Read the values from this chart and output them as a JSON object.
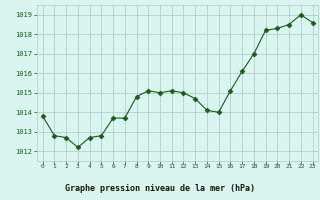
{
  "x": [
    0,
    1,
    2,
    3,
    4,
    5,
    6,
    7,
    8,
    9,
    10,
    11,
    12,
    13,
    14,
    15,
    16,
    17,
    18,
    19,
    20,
    21,
    22,
    23
  ],
  "y": [
    1013.8,
    1012.8,
    1012.7,
    1012.2,
    1012.7,
    1012.8,
    1013.7,
    1013.7,
    1014.8,
    1015.1,
    1015.0,
    1015.1,
    1015.0,
    1014.7,
    1014.1,
    1014.0,
    1015.1,
    1016.1,
    1017.0,
    1018.2,
    1018.3,
    1018.5,
    1019.0,
    1018.6
  ],
  "line_color": "#1a5c1a",
  "marker": "D",
  "marker_size": 2.5,
  "bg_color": "#d8f5f0",
  "grid_color": "#b0c8c8",
  "xlabel": "Graphe pression niveau de la mer (hPa)",
  "xlabel_color": "#1a5c1a",
  "xlabel_bg": "#6aaa6a",
  "tick_color": "#1a5c1a",
  "ylim": [
    1011.5,
    1019.5
  ],
  "yticks": [
    1012,
    1013,
    1014,
    1015,
    1016,
    1017,
    1018,
    1019
  ],
  "xticks": [
    0,
    1,
    2,
    3,
    4,
    5,
    6,
    7,
    8,
    9,
    10,
    11,
    12,
    13,
    14,
    15,
    16,
    17,
    18,
    19,
    20,
    21,
    22,
    23
  ],
  "xlim": [
    -0.5,
    23.5
  ]
}
